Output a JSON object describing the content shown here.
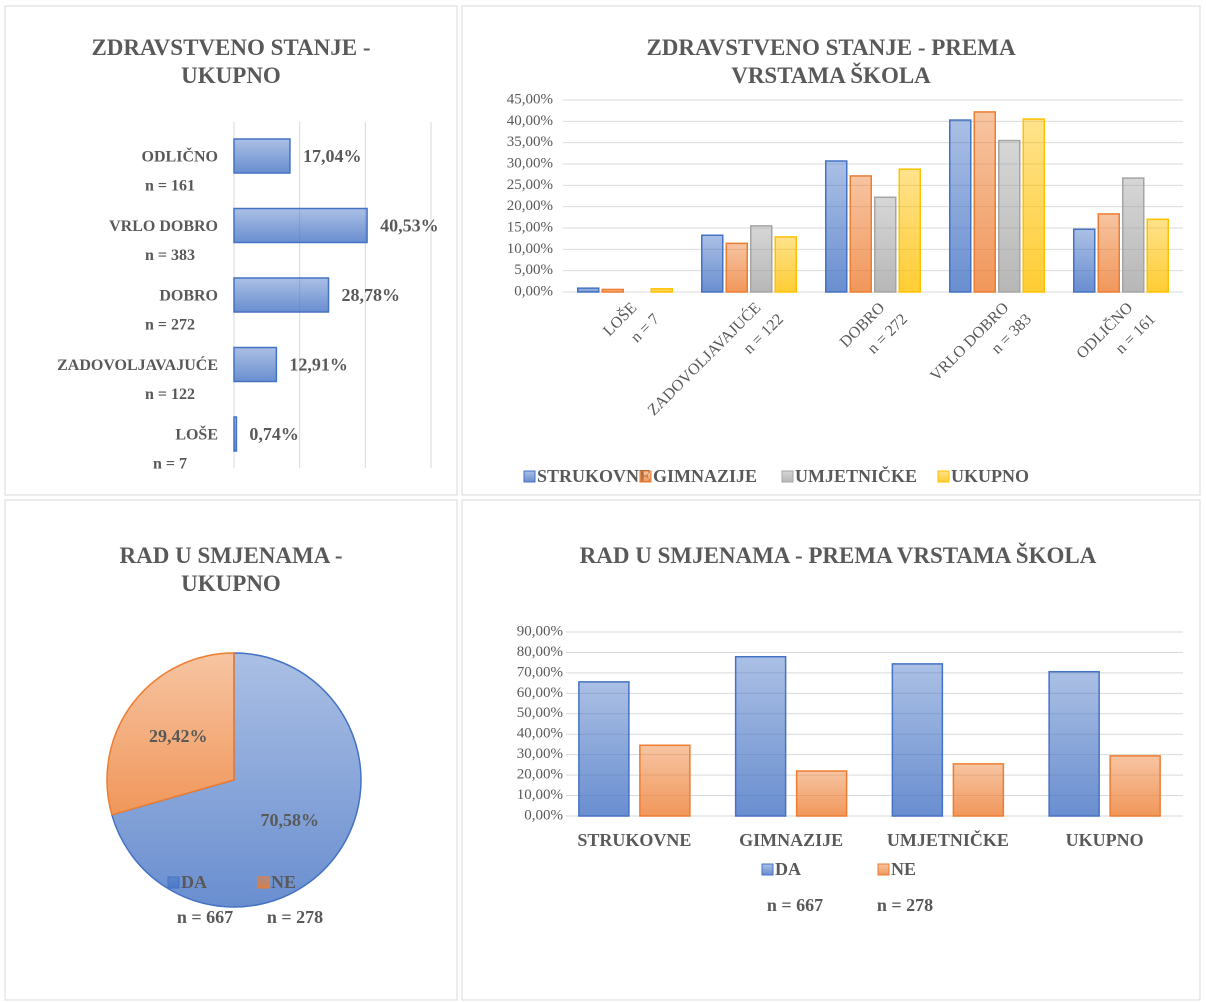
{
  "chart_data": [
    {
      "type": "barh",
      "title": "ZDRAVSTVENO STANJE - UKUPNO",
      "categories": [
        "ODLIČNO",
        "VRLO DOBRO",
        "DOBRO",
        "ZADOVOLJAVAJUĆE",
        "LOŠE"
      ],
      "n_labels": [
        "n = 161",
        "n = 383",
        "n = 272",
        "n = 122",
        "n = 7"
      ],
      "values": [
        17.04,
        40.53,
        28.78,
        12.91,
        0.74
      ],
      "value_labels": [
        "17,04%",
        "40,53%",
        "28,78%",
        "12,91%",
        "0,74%"
      ],
      "color": "#4472c4",
      "xlim": [
        0,
        60
      ],
      "xticks": [
        0,
        20,
        40,
        60
      ],
      "grid": true
    },
    {
      "type": "bar",
      "title": "ZDRAVSTVENO STANJE - PREMA VRSTAMA ŠKOLA",
      "categories": [
        "LOŠE",
        "ZADOVOLJAVAJUĆE",
        "DOBRO",
        "VRLO DOBRO",
        "ODLIČNO"
      ],
      "n_labels": [
        "n = 7",
        "n = 122",
        "n = 272",
        "n = 383",
        "n = 161"
      ],
      "series": [
        {
          "name": "STRUKOVNE",
          "color": "#4472c4",
          "values": [
            0.9,
            13.3,
            30.7,
            40.3,
            14.7
          ]
        },
        {
          "name": "GIMNAZIJE",
          "color": "#ed7d31",
          "values": [
            0.6,
            11.4,
            27.2,
            42.2,
            18.3
          ]
        },
        {
          "name": "UMJETNIČKE",
          "color": "#a5a5a5",
          "values": [
            0,
            15.5,
            22.2,
            35.5,
            26.7
          ]
        },
        {
          "name": "UKUPNO",
          "color": "#ffc000",
          "values": [
            0.74,
            12.91,
            28.78,
            40.53,
            17.04
          ]
        }
      ],
      "ylim": [
        0,
        45
      ],
      "yticks": [
        {
          "value": 0,
          "label": "0,00%"
        },
        {
          "value": 5,
          "label": "5,00%"
        },
        {
          "value": 10,
          "label": "10,00%"
        },
        {
          "value": 15,
          "label": "15,00%"
        },
        {
          "value": 20,
          "label": "20,00%"
        },
        {
          "value": 25,
          "label": "25,00%"
        },
        {
          "value": 30,
          "label": "30,00%"
        },
        {
          "value": 35,
          "label": "35,00%"
        },
        {
          "value": 40,
          "label": "40,00%"
        },
        {
          "value": 45,
          "label": "45,00%"
        }
      ],
      "grid": true,
      "legend": "bottom"
    },
    {
      "type": "pie",
      "title": "RAD U SMJENAMA - UKUPNO",
      "categories": [
        "DA",
        "NE"
      ],
      "n_labels": [
        "n = 667",
        "n = 278"
      ],
      "values": [
        70.58,
        29.42
      ],
      "value_labels": [
        "70,58%",
        "29,42%"
      ],
      "colors": [
        "#4472c4",
        "#ed7d31"
      ],
      "legend": "bottom"
    },
    {
      "type": "bar",
      "title": "RAD U SMJENAMA - PREMA VRSTAMA ŠKOLA",
      "categories": [
        "STRUKOVNE",
        "GIMNAZIJE",
        "UMJETNIČKE",
        "UKUPNO"
      ],
      "series": [
        {
          "name": "DA",
          "color": "#4472c4",
          "values": [
            65.6,
            77.9,
            74.4,
            70.58
          ]
        },
        {
          "name": "NE",
          "color": "#ed7d31",
          "values": [
            34.6,
            22.0,
            25.5,
            29.42
          ]
        }
      ],
      "n_labels": [
        "n = 667",
        "n = 278"
      ],
      "ylim": [
        0,
        90
      ],
      "yticks": [
        {
          "value": 0,
          "label": "0,00%"
        },
        {
          "value": 10,
          "label": "10,00%"
        },
        {
          "value": 20,
          "label": "20,00%"
        },
        {
          "value": 30,
          "label": "30,00%"
        },
        {
          "value": 40,
          "label": "40,00%"
        },
        {
          "value": 50,
          "label": "50,00%"
        },
        {
          "value": 60,
          "label": "60,00%"
        },
        {
          "value": 70,
          "label": "70,00%"
        },
        {
          "value": 80,
          "label": "80,00%"
        },
        {
          "value": 90,
          "label": "90,00%"
        }
      ],
      "grid": true,
      "legend": "bottom"
    }
  ]
}
